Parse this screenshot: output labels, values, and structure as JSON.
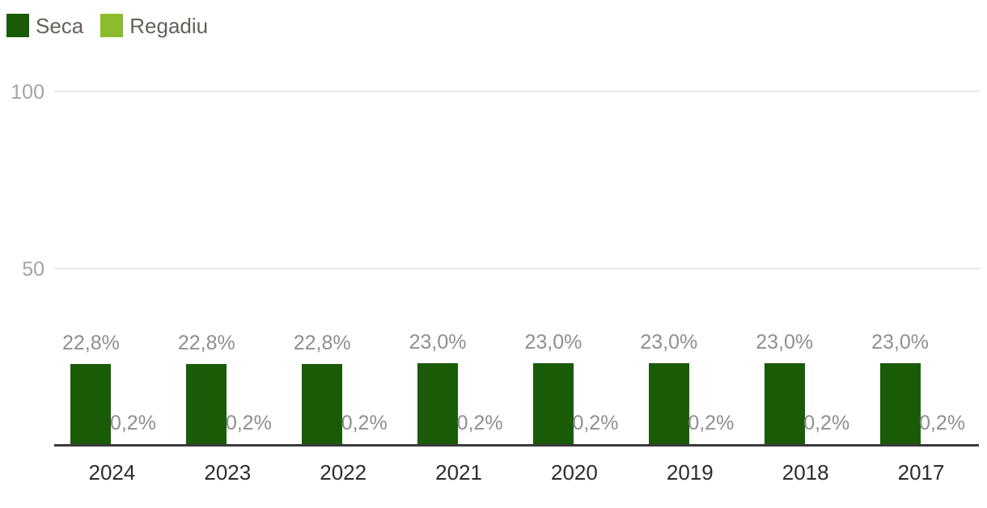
{
  "legend": {
    "items": [
      {
        "label": "Seca",
        "color": "#1A5B08"
      },
      {
        "label": "Regadiu",
        "color": "#8ABC2C"
      }
    ]
  },
  "chart_data": {
    "type": "bar",
    "categories": [
      "2024",
      "2023",
      "2022",
      "2021",
      "2020",
      "2019",
      "2018",
      "2017"
    ],
    "series": [
      {
        "name": "Seca",
        "color": "#1A5B08",
        "values": [
          22.8,
          22.8,
          22.8,
          23.0,
          23.0,
          23.0,
          23.0,
          23.0
        ],
        "labels": [
          "22,8%",
          "22,8%",
          "22,8%",
          "23,0%",
          "23,0%",
          "23,0%",
          "23,0%",
          "23,0%"
        ]
      },
      {
        "name": "Regadiu",
        "color": "#8ABC2C",
        "values": [
          0.2,
          0.2,
          0.2,
          0.2,
          0.2,
          0.2,
          0.2,
          0.2
        ],
        "labels": [
          "0,2%",
          "0,2%",
          "0,2%",
          "0,2%",
          "0,2%",
          "0,2%",
          "0,2%",
          "0,2%"
        ]
      }
    ],
    "title": "",
    "xlabel": "",
    "ylabel": "",
    "ylim": [
      0,
      100
    ],
    "yticks": [
      {
        "value": 100,
        "label": "100"
      },
      {
        "value": 50,
        "label": "50"
      }
    ],
    "grid": "horizontal",
    "legend_position": "top-left",
    "value_label_format": "comma-decimal-percent"
  },
  "colors": {
    "seca_bar": "#1A5B08",
    "regadiu_bar": "#8ABC2C",
    "gridline": "#e9e9e9",
    "axis_line": "#3b3b3b",
    "value_label": "#8f8f8f",
    "ytick_label": "#a4a4a4",
    "year_label": "#2d2d2d",
    "legend_text": "#67605a"
  }
}
